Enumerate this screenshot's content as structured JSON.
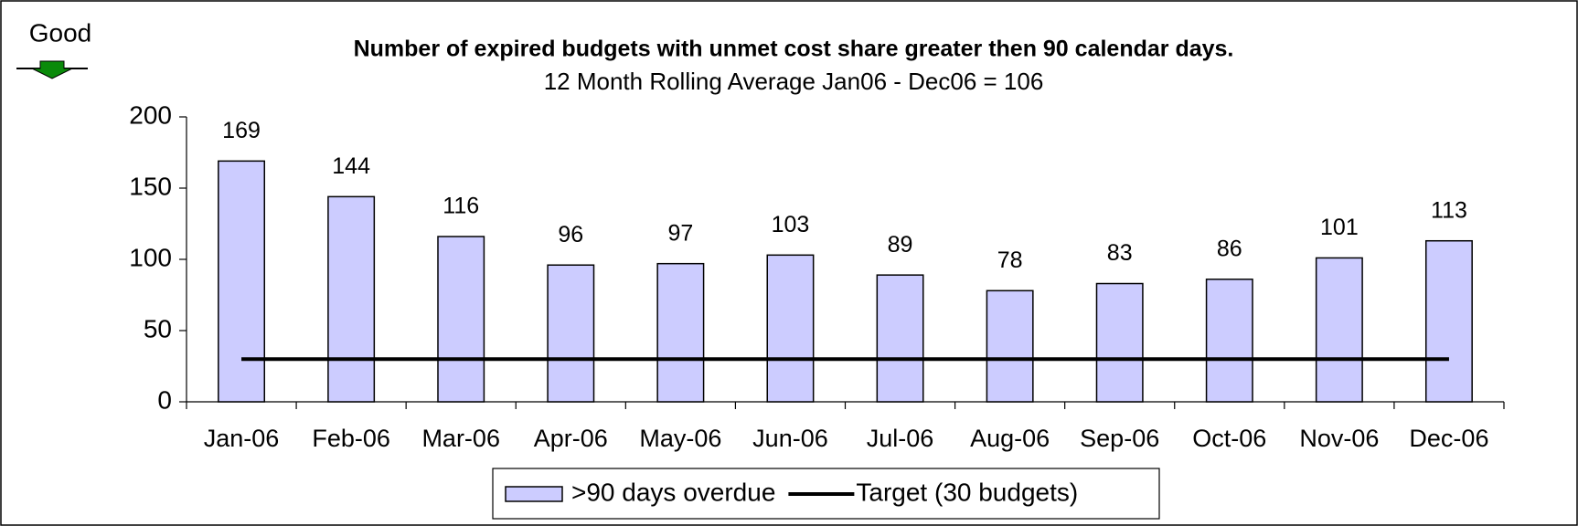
{
  "chart_data": {
    "type": "bar",
    "title": "Number of expired budgets with unmet cost share greater then 90 calendar days.",
    "subtitle": "12 Month Rolling Average Jan06 - Dec06 = 106",
    "annotation": "Good",
    "categories": [
      "Jan-06",
      "Feb-06",
      "Mar-06",
      "Apr-06",
      "May-06",
      "Jun-06",
      "Jul-06",
      "Aug-06",
      "Sep-06",
      "Oct-06",
      "Nov-06",
      "Dec-06"
    ],
    "series": [
      {
        "name": ">90 days overdue",
        "type": "bar",
        "color": "#ccccff",
        "values": [
          169,
          144,
          116,
          96,
          97,
          103,
          89,
          78,
          83,
          86,
          101,
          113
        ]
      },
      {
        "name": "Target (30 budgets)",
        "type": "line",
        "color": "#000000",
        "values": [
          30,
          30,
          30,
          30,
          30,
          30,
          30,
          30,
          30,
          30,
          30,
          30
        ]
      }
    ],
    "ylim": [
      0,
      200
    ],
    "yticks": [
      0,
      50,
      100,
      150,
      200
    ],
    "grid": false,
    "legend": "bottom"
  }
}
